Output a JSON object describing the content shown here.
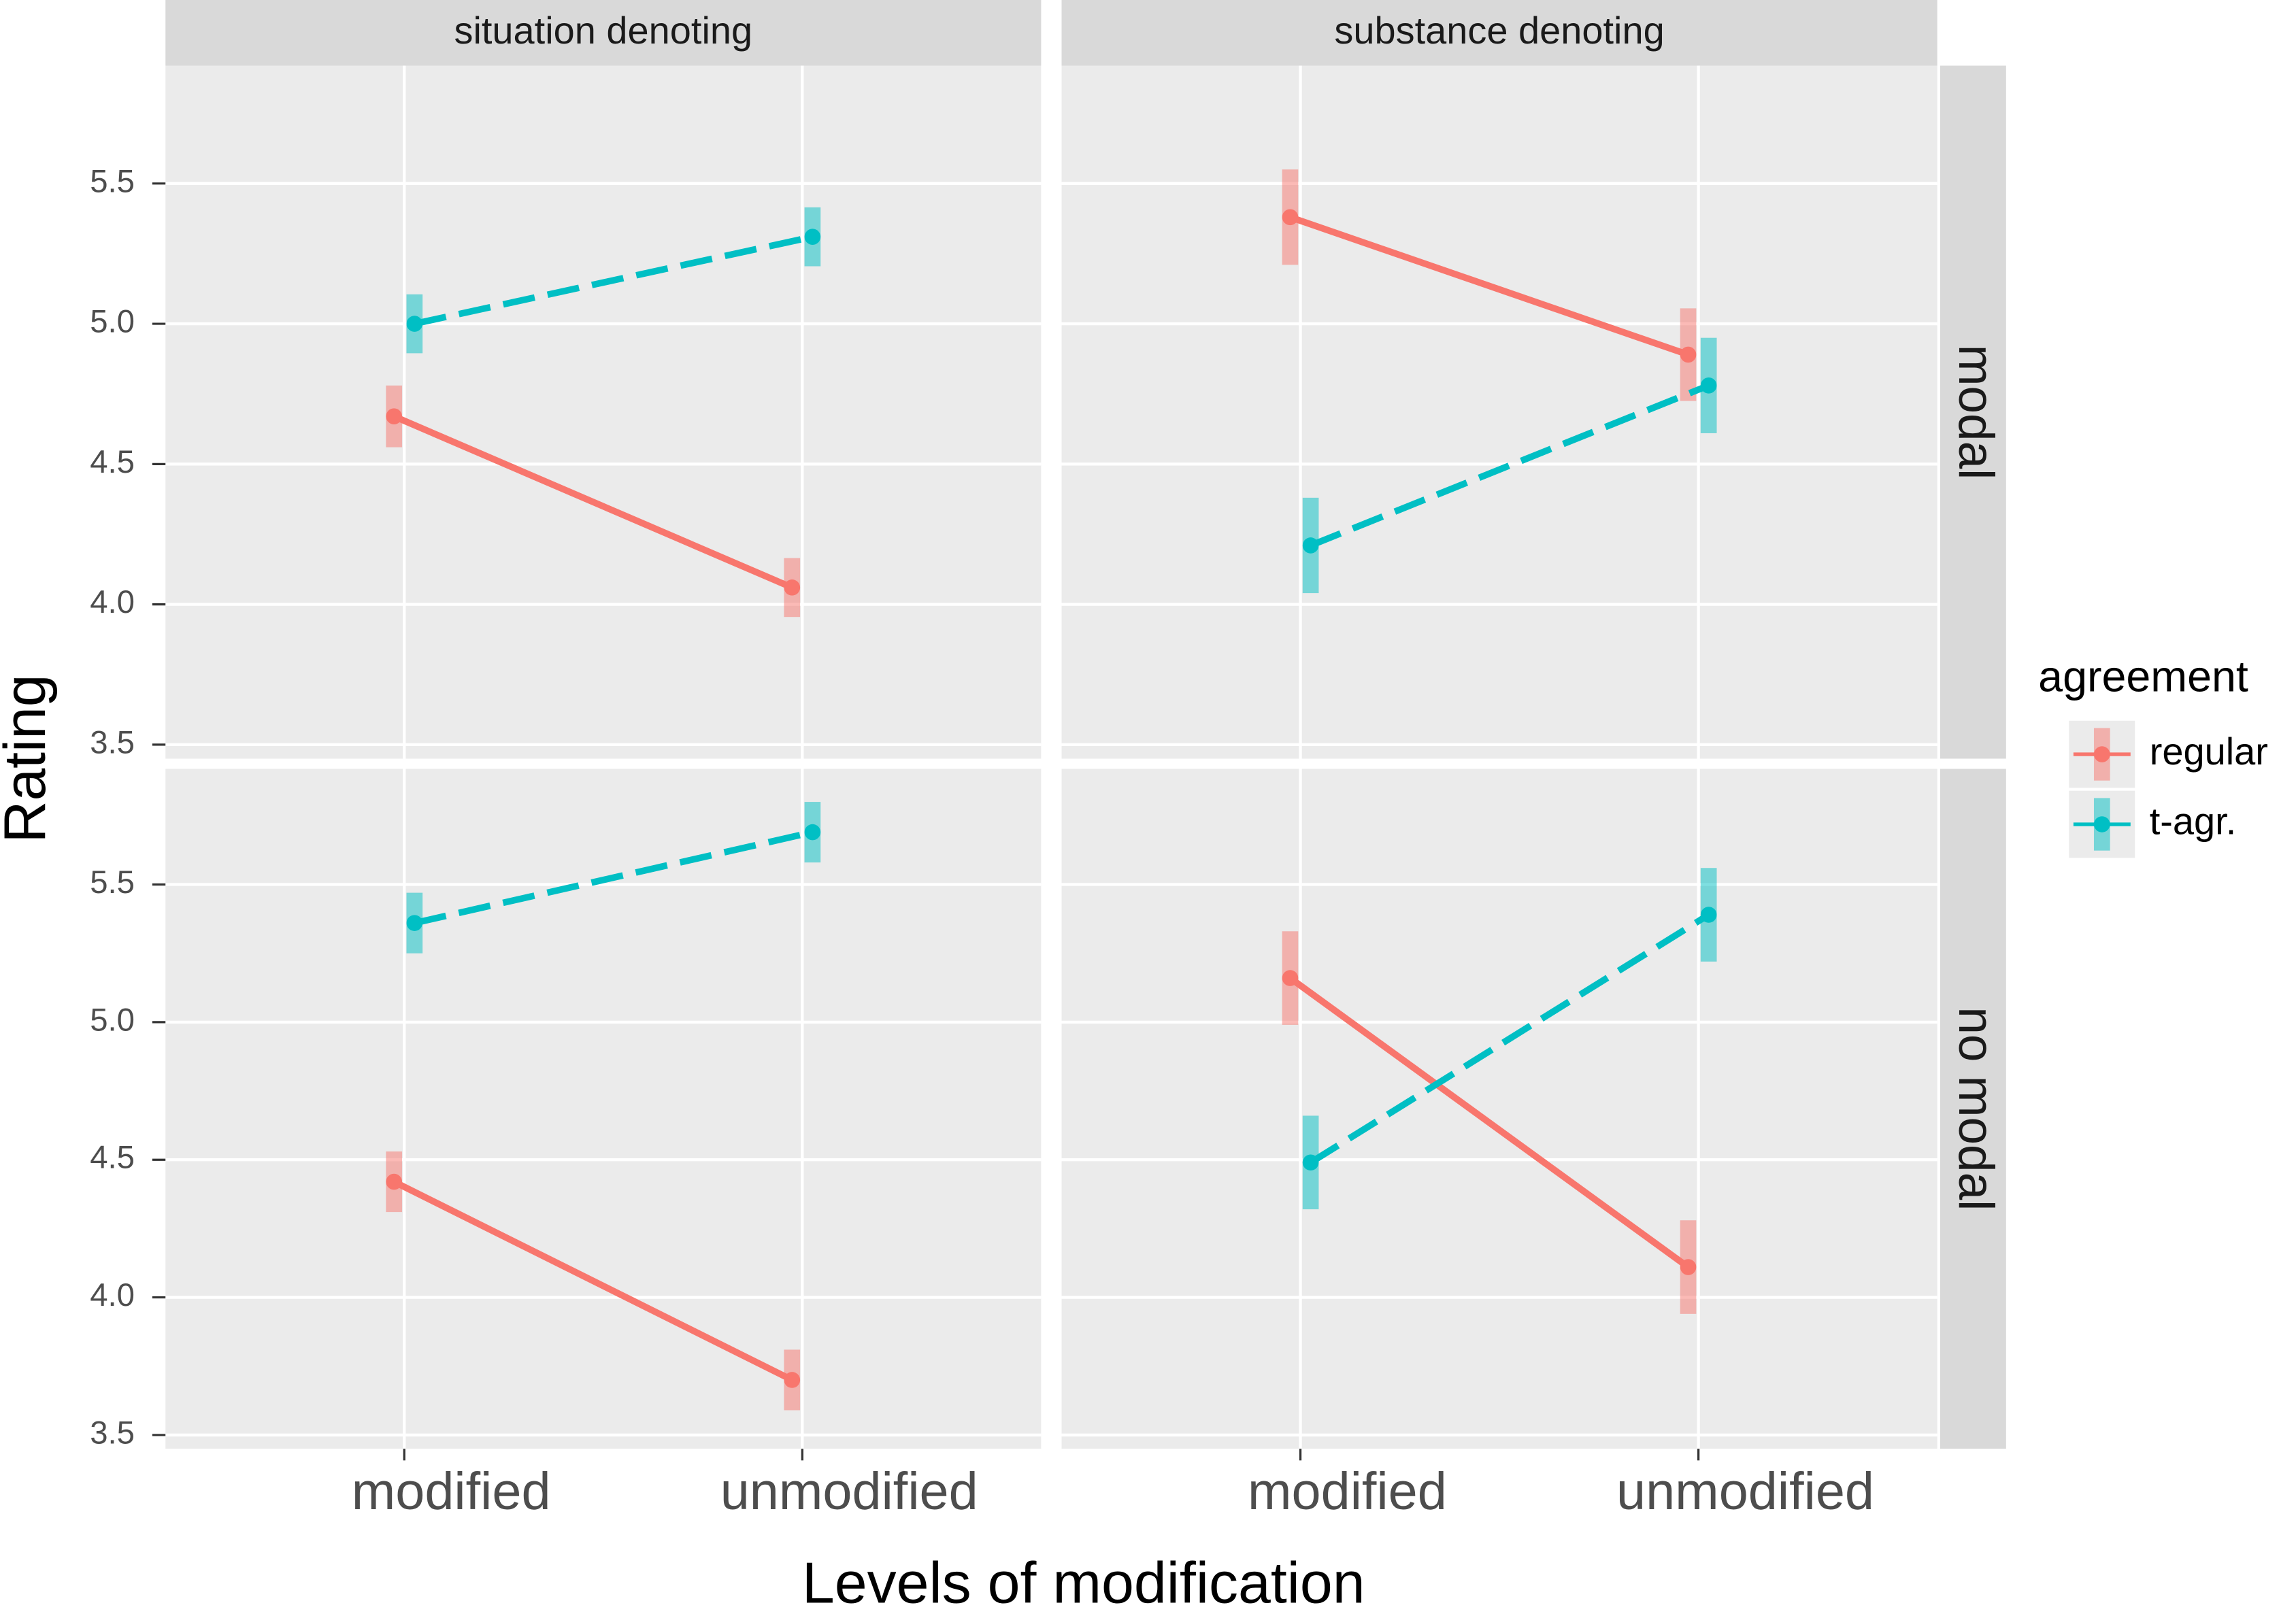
{
  "chart_data": {
    "type": "line",
    "x_label": "Levels of modification",
    "y_label": "Rating",
    "columns": [
      "situation denoting",
      "substance denoting"
    ],
    "rows": [
      "modal",
      "no modal"
    ],
    "categories": [
      "modified",
      "unmodified"
    ],
    "ylim": [
      3.45,
      5.92
    ],
    "yticks": [
      3.5,
      {
        "value": 4,
        "label": "4.0"
      },
      4.5,
      {
        "value": 5,
        "label": "5.0"
      },
      5.5
    ],
    "grid": true,
    "legend": {
      "title": "agreement",
      "position": "right"
    },
    "series": [
      {
        "name": "regular",
        "color": "#f8766d",
        "linetype": "solid",
        "values": [
          [
            4.67,
            4.06
          ],
          [
            5.38,
            4.89
          ],
          [
            4.42,
            3.7
          ],
          [
            5.16,
            4.11
          ]
        ],
        "errors": [
          [
            0.11,
            0.105
          ],
          [
            0.17,
            0.165
          ],
          [
            0.11,
            0.11
          ],
          [
            0.17,
            0.17
          ]
        ]
      },
      {
        "name": "t-agr.",
        "color": "#00bfc4",
        "linetype": "dashed",
        "values": [
          [
            5.0,
            5.31
          ],
          [
            4.21,
            4.78
          ],
          [
            5.36,
            5.69
          ],
          [
            4.49,
            5.39
          ]
        ],
        "errors": [
          [
            0.105,
            0.105
          ],
          [
            0.17,
            0.17
          ],
          [
            0.11,
            0.11
          ],
          [
            0.17,
            0.17
          ]
        ]
      }
    ]
  }
}
